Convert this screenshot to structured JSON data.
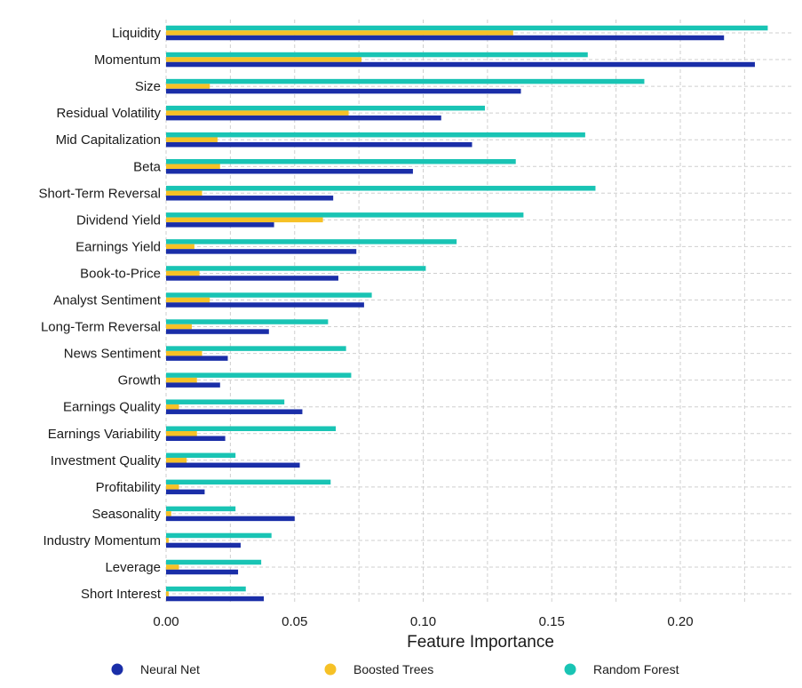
{
  "chart_data": {
    "type": "bar",
    "orientation": "horizontal",
    "xlabel": "Feature Importance",
    "ylabel": "",
    "xlim": [
      0,
      0.24
    ],
    "xticks": [
      "0.00",
      "0.05",
      "0.10",
      "0.15",
      "0.20"
    ],
    "grid": true,
    "legend_position": "bottom",
    "categories": [
      "Liquidity",
      "Momentum",
      "Size",
      "Residual Volatility",
      "Mid Capitalization",
      "Beta",
      "Short-Term Reversal",
      "Dividend Yield",
      "Earnings Yield",
      "Book-to-Price",
      "Analyst Sentiment",
      "Long-Term Reversal",
      "News Sentiment",
      "Growth",
      "Earnings Quality",
      "Earnings Variability",
      "Investment Quality",
      "Profitability",
      "Seasonality",
      "Industry Momentum",
      "Leverage",
      "Short Interest"
    ],
    "series": [
      {
        "name": "Neural Net",
        "color": "#1a2ea8",
        "values": [
          0.217,
          0.229,
          0.138,
          0.107,
          0.119,
          0.096,
          0.065,
          0.042,
          0.074,
          0.067,
          0.077,
          0.04,
          0.024,
          0.021,
          0.053,
          0.023,
          0.052,
          0.015,
          0.05,
          0.029,
          0.028,
          0.038
        ]
      },
      {
        "name": "Boosted Trees",
        "color": "#f6c126",
        "values": [
          0.135,
          0.076,
          0.017,
          0.071,
          0.02,
          0.021,
          0.014,
          0.061,
          0.011,
          0.013,
          0.017,
          0.01,
          0.014,
          0.012,
          0.005,
          0.012,
          0.008,
          0.005,
          0.002,
          0.001,
          0.005,
          0.001
        ]
      },
      {
        "name": "Random Forest",
        "color": "#19c4b4",
        "values": [
          0.234,
          0.164,
          0.186,
          0.124,
          0.163,
          0.136,
          0.167,
          0.139,
          0.113,
          0.101,
          0.08,
          0.063,
          0.07,
          0.072,
          0.046,
          0.066,
          0.027,
          0.064,
          0.027,
          0.041,
          0.037,
          0.031
        ]
      }
    ]
  }
}
